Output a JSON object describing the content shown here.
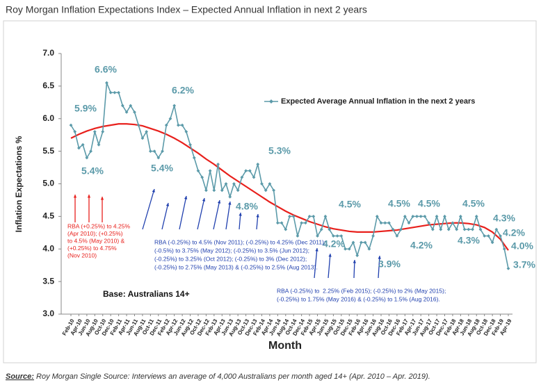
{
  "chart_data": {
    "type": "line",
    "title": "Roy Morgan Inflation Expectations Index – Expected Annual Inflation in next 2 years",
    "xlabel": "Month",
    "ylabel": "Inflation Expectations %",
    "categories": [
      "Feb-10",
      null,
      "Apr-10",
      null,
      "Jun-10",
      null,
      "Aug-10",
      null,
      "Oct-10",
      null,
      "Dec-10",
      null,
      "Feb-11",
      null,
      "Apr-11",
      null,
      "Jun-11",
      null,
      "Aug-11",
      null,
      "Oct-11",
      null,
      "Dec-11",
      null,
      "Feb-12",
      null,
      "Apr-12",
      null,
      "Jun-12",
      null,
      "Aug-12",
      null,
      "Oct-12",
      null,
      "Dec-12",
      null,
      "Feb-13",
      null,
      "Apr-13",
      null,
      "Jun-13",
      null,
      "Aug-13",
      null,
      "Oct-13",
      null,
      "Dec-13",
      null,
      "Feb-14",
      null,
      "Apr-14",
      null,
      "Jun-14",
      null,
      "Aug-14",
      null,
      "Oct-14",
      null,
      "Dec-14",
      null,
      "Feb-15",
      null,
      "Apr-15",
      null,
      "Jun-15",
      null,
      "Aug-15",
      null,
      "Oct-15",
      null,
      "Dec-15",
      null,
      "Feb-16",
      null,
      "Apr-16",
      null,
      "Jun-16",
      null,
      "Aug-16",
      null,
      "Oct-16",
      null,
      "Dec-16",
      null,
      "Feb-17",
      null,
      "Apr-17",
      null,
      "Jun-17",
      null,
      "Aug-17",
      null,
      "Oct-17",
      null,
      "Dec-17",
      null,
      "Feb-18",
      null,
      "Apr-18",
      null,
      "Jun-18",
      null,
      "Aug-18",
      null,
      "Oct-18",
      null,
      "Dec-18",
      null,
      "Feb-19",
      null,
      "Apr-19"
    ],
    "series": [
      {
        "name": "Expected Average Annual Inflation in the next 2 years",
        "color": "#5b9aa9",
        "values": [
          5.9,
          5.8,
          5.55,
          5.6,
          5.4,
          5.5,
          5.8,
          5.6,
          5.8,
          6.55,
          6.4,
          6.4,
          6.4,
          6.2,
          6.1,
          6.2,
          6.1,
          5.9,
          5.7,
          5.8,
          5.5,
          5.5,
          5.4,
          5.5,
          5.9,
          6.0,
          6.2,
          5.9,
          5.9,
          5.8,
          5.6,
          5.4,
          5.2,
          5.1,
          4.9,
          5.2,
          4.9,
          5.3,
          4.9,
          5.0,
          4.8,
          5.0,
          4.9,
          5.1,
          5.2,
          5.2,
          5.1,
          5.3,
          5.0,
          4.9,
          5.0,
          4.9,
          4.4,
          4.4,
          4.3,
          4.5,
          4.5,
          4.2,
          4.4,
          4.4,
          4.5,
          4.5,
          4.2,
          4.3,
          4.5,
          4.3,
          4.2,
          4.2,
          4.2,
          4.0,
          4.0,
          4.1,
          3.9,
          4.1,
          4.1,
          4.0,
          4.2,
          4.5,
          4.4,
          4.4,
          4.4,
          4.3,
          4.2,
          4.3,
          4.5,
          4.4,
          4.5,
          4.5,
          4.5,
          4.5,
          4.4,
          4.3,
          4.5,
          4.3,
          4.5,
          4.3,
          4.4,
          4.3,
          4.5,
          4.3,
          4.3,
          4.3,
          4.5,
          4.3,
          4.2,
          4.2,
          4.1,
          4.3,
          4.2,
          4.0,
          3.7
        ]
      }
    ],
    "trend": {
      "color": "#e8201c",
      "values": [
        5.7,
        5.76,
        5.81,
        5.85,
        5.88,
        5.9,
        5.92,
        5.92,
        5.91,
        5.89,
        5.85,
        5.81,
        5.76,
        5.7,
        5.63,
        5.55,
        5.47,
        5.38,
        5.3,
        5.21,
        5.12,
        5.04,
        4.96,
        4.88,
        4.8,
        4.72,
        4.65,
        4.58,
        4.52,
        4.47,
        4.42,
        4.38,
        4.34,
        4.31,
        4.29,
        4.27,
        4.26,
        4.26,
        4.26,
        4.27,
        4.28,
        4.29,
        4.31,
        4.33,
        4.35,
        4.37,
        4.38,
        4.39,
        4.4,
        4.4,
        4.39,
        4.37,
        4.33,
        4.26,
        4.15,
        3.98
      ]
    },
    "ylim": [
      3,
      7
    ],
    "yticks": [
      {
        "value": 3,
        "label": "3.0"
      },
      {
        "value": 3.5,
        "label": "3.5"
      },
      {
        "value": 4,
        "label": "4.0"
      },
      {
        "value": 4.5,
        "label": "4.5"
      },
      {
        "value": 5,
        "label": "5.0"
      },
      {
        "value": 5.5,
        "label": "5.5"
      },
      {
        "value": 6,
        "label": "6.0"
      },
      {
        "value": 6.5,
        "label": "6.5"
      },
      {
        "value": 7,
        "label": "7.0"
      }
    ],
    "annotations": [
      "5.9%",
      "6.6%",
      "5.4%",
      "6.2%",
      "5.4%",
      "5.3%",
      "4.8%",
      "4.5%",
      "4.2%",
      "3.9%",
      "4.5%",
      "4.2%",
      "4.5%",
      "4.3%",
      "4.5%",
      "4.3%",
      "4.2%",
      "4.0%",
      "3.7%"
    ],
    "rba_notes": [
      [
        "RBA (+0.25%) to 4.25%",
        "(Apr 2010); (+0.25%)",
        "to 4.5% (May 2010) &",
        "(+0.25%) to 4.75%",
        "(Nov 2010)"
      ],
      [
        "RBA (-0.25%) to 4.5% (Nov 2011); (-0.25%) to 4.25% (Dec 2011);",
        "(-0.5%) to 3.75% (May 2012); (-0.25%) to 3.5% (Jun 2012);",
        "(-0.25%) to 3.25% (Oct 2012); (-0.25%) to 3% (Dec 2012);",
        "(-0.25%) to 2.75% (May 2013) & (-0.25%) to 2.5% (Aug 2013)."
      ],
      [
        "RBA (-0.25%) to  2.25% (Feb 2015); (-0.25%) to 2% (May 2015);",
        "(-0.25%) to 1.75% (May 2016) & (-0.25%) to 1.5% (Aug 2016)."
      ]
    ],
    "base": "Base: Australians 14+",
    "source_label": "Source:",
    "source": " Roy Morgan Single Source: Interviews an average of 4,000 Australians per month aged 14+ (Apr. 2010 – Apr. 2019)."
  }
}
